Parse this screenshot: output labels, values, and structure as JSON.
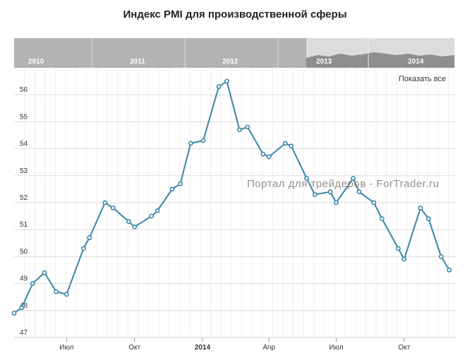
{
  "title": "Индекс PMI для производственной сферы",
  "show_all_label": "Показать все",
  "watermark": "Портал для трейдеров - ForTrader.ru",
  "navigator": {
    "years": [
      "2010",
      "2011",
      "2012",
      "2013",
      "2014"
    ]
  },
  "colors": {
    "line": "#3a85a8",
    "marker_fill": "#ffffff",
    "grid": "#dddddd",
    "navigator_bg": "#b3b3b3",
    "navigator_selected": "#dcdcdc",
    "navigator_area": "#8e8e8e"
  },
  "chart_data": {
    "type": "line",
    "title": "Индекс PMI для производственной сферы",
    "xlabel": "",
    "ylabel": "",
    "ylim": [
      47,
      57
    ],
    "yticks": [
      47,
      48,
      49,
      50,
      51,
      52,
      53,
      54,
      55,
      56
    ],
    "grid": true,
    "xlim": [
      "2013-04-21",
      "2014-12-10"
    ],
    "xticks": [
      {
        "date": "2013-07-01",
        "label": "Июл",
        "bold": false
      },
      {
        "date": "2013-10-01",
        "label": "Окт",
        "bold": false
      },
      {
        "date": "2014-01-01",
        "label": "2014",
        "bold": true
      },
      {
        "date": "2014-04-01",
        "label": "Апр",
        "bold": false
      },
      {
        "date": "2014-07-01",
        "label": "Июл",
        "bold": false
      },
      {
        "date": "2014-10-01",
        "label": "Окт",
        "bold": false
      }
    ],
    "series": [
      {
        "x": [
          "2013-04-21",
          "2013-05-01",
          "2013-05-16",
          "2013-06-01",
          "2013-06-17",
          "2013-07-01",
          "2013-07-24",
          "2013-08-01",
          "2013-08-22",
          "2013-09-02",
          "2013-09-23",
          "2013-10-01",
          "2013-10-24",
          "2013-11-01",
          "2013-11-21",
          "2013-12-02",
          "2013-12-16",
          "2014-01-02",
          "2014-01-23",
          "2014-02-03",
          "2014-02-20",
          "2014-03-03",
          "2014-03-24",
          "2014-04-01",
          "2014-04-23",
          "2014-05-01",
          "2014-05-22",
          "2014-06-02",
          "2014-06-23",
          "2014-07-01",
          "2014-07-24",
          "2014-08-01",
          "2014-08-21",
          "2014-09-01",
          "2014-09-23",
          "2014-10-01",
          "2014-10-23",
          "2014-11-03",
          "2014-11-20",
          "2014-12-01"
        ],
        "values": [
          47.9,
          48.1,
          49.0,
          49.4,
          48.7,
          48.6,
          50.3,
          50.7,
          52.0,
          51.8,
          51.3,
          51.1,
          51.5,
          51.7,
          52.5,
          52.7,
          54.2,
          54.3,
          56.3,
          56.5,
          54.7,
          54.8,
          53.8,
          53.7,
          54.2,
          54.1,
          52.9,
          52.3,
          52.4,
          52.0,
          52.9,
          52.4,
          52.0,
          51.4,
          50.3,
          49.9,
          51.8,
          51.4,
          50.0,
          49.5
        ]
      }
    ]
  }
}
